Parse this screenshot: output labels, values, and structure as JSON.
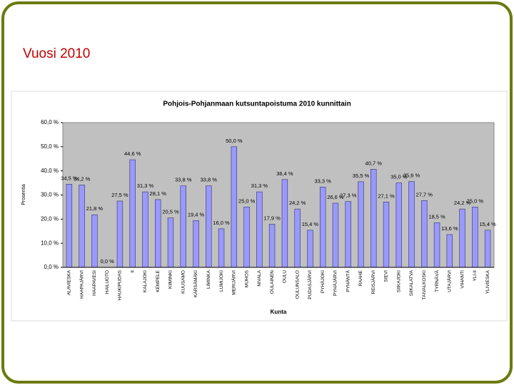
{
  "slide_title": "Vuosi 2010",
  "chart_data": {
    "type": "bar",
    "title": "Pohjois-Pohjanmaan kutsuntapoistuma 2010 kunnittain",
    "x_label": "Kunta",
    "y_label": "Prosentia",
    "color": "#9999ff",
    "plot_background": "#c0c0c0",
    "categories": [
      "ALAVIESKA",
      "HAAPAJÄRVI",
      "HAAPAVESI",
      "HAILUOTO",
      "HAUKIPUDAS",
      "II",
      "KALAJOKI",
      "KEMPELE",
      "KIIMINKI",
      "KUUSAMO",
      "KÄRSÄMÄKI",
      "LIMINKA",
      "LUMIJOKI",
      "MERIJÄRVI",
      "MUHOS",
      "NIVALA",
      "OULAINEN",
      "OULU",
      "OULUNSALO",
      "PUDASJÄRVI",
      "PYHÄJOKI",
      "PYHÄJÄRVI",
      "PYHÄNTÄ",
      "RAAHE",
      "REISJÄRVI",
      "SIEVI",
      "SIIKAJOKI",
      "SIIKALATVA",
      "TAIVALKOSKI",
      "TYRNÄVÄ",
      "UTAJÄRVI",
      "VIHANTI",
      "YLI-II",
      "YLIVIESKA"
    ],
    "values": [
      34.5,
      34.2,
      21.8,
      0.0,
      27.5,
      44.6,
      31.3,
      28.1,
      20.5,
      33.8,
      19.4,
      33.8,
      16.0,
      50.0,
      25.0,
      31.3,
      17.9,
      36.4,
      24.2,
      15.4,
      33.3,
      26.6,
      27.3,
      35.5,
      40.7,
      27.1,
      35.0,
      35.6,
      27.7,
      18.5,
      13.6,
      24.2,
      25.0,
      15.4
    ],
    "value_labels": [
      "34,5 %",
      "34,2 %",
      "21,8 %",
      "0,0 %",
      "27,5 %",
      "44,6 %",
      "31,3 %",
      "28,1 %",
      "20,5 %",
      "33,8 %",
      "19,4 %",
      "33,8 %",
      "16,0 %",
      "50,0 %",
      "25,0 %",
      "31,3 %",
      "17,9 %",
      "36,4 %",
      "24,2 %",
      "15,4 %",
      "33,3 %",
      "26,6 %",
      "27,3 %",
      "35,5 %",
      "40,7 %",
      "27,1 %",
      "35,0 %",
      "35,6 %",
      "27,7 %",
      "18,5 %",
      "13,6 %",
      "24,2 %",
      "25,0 %",
      "15,4 %"
    ],
    "ylim": [
      0,
      60
    ],
    "yticks": [
      {
        "value": 0,
        "label": "0,0 %"
      },
      {
        "value": 10,
        "label": "10,0 %"
      },
      {
        "value": 20,
        "label": "20,0 %"
      },
      {
        "value": 30,
        "label": "30,0 %"
      },
      {
        "value": 40,
        "label": "40,0 %"
      },
      {
        "value": 50,
        "label": "50,0 %"
      },
      {
        "value": 60,
        "label": "60,0 %"
      }
    ],
    "grid": false
  }
}
